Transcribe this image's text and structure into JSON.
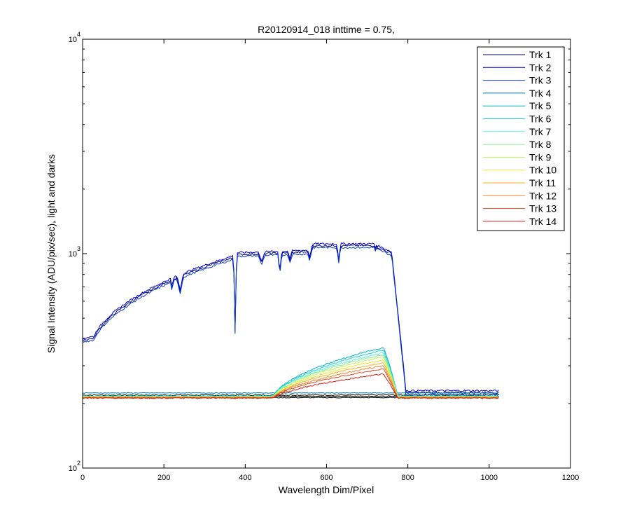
{
  "chart_data": {
    "type": "line",
    "title": "R20120914_018 inttime = 0.75,",
    "xlabel": "Wavelength Dim/Pixel",
    "ylabel": "Signal Intensity (ADU/pix/sec), light and darks",
    "xlim": [
      0,
      1200
    ],
    "ylim": [
      100,
      10000
    ],
    "yscale": "log",
    "x_ticks": [
      "0",
      "200",
      "400",
      "600",
      "800",
      "1000",
      "1200"
    ],
    "y_ticks": [
      {
        "base": "10",
        "exp": "2",
        "value": 100
      },
      {
        "base": "10",
        "exp": "3",
        "value": 1000
      },
      {
        "base": "10",
        "exp": "4",
        "value": 10000
      }
    ],
    "grid": false,
    "legend_position": "top-right",
    "series": [
      {
        "name": "Trk 1",
        "color": "#00008f",
        "shape": "bright",
        "peak": 1.0
      },
      {
        "name": "Trk 2",
        "color": "#0000cf",
        "shape": "bright",
        "peak": 1.02
      },
      {
        "name": "Trk 3",
        "color": "#0f3fbf",
        "shape": "bright",
        "peak": 0.98
      },
      {
        "name": "Trk 4",
        "color": "#0070a8",
        "shape": "flat",
        "base": 224
      },
      {
        "name": "Trk 5",
        "color": "#00b0c0",
        "shape": "hump",
        "base": 217,
        "peak": 365
      },
      {
        "name": "Trk 6",
        "color": "#20d0d0",
        "shape": "hump",
        "base": 216,
        "peak": 355
      },
      {
        "name": "Trk 7",
        "color": "#60f0e0",
        "shape": "hump",
        "base": 216,
        "peak": 345
      },
      {
        "name": "Trk 8",
        "color": "#90f090",
        "shape": "hump",
        "base": 215,
        "peak": 338
      },
      {
        "name": "Trk 9",
        "color": "#c0f060",
        "shape": "hump",
        "base": 215,
        "peak": 330
      },
      {
        "name": "Trk 10",
        "color": "#e8e830",
        "shape": "hump",
        "base": 214,
        "peak": 320
      },
      {
        "name": "Trk 11",
        "color": "#f0b020",
        "shape": "hump",
        "base": 214,
        "peak": 310
      },
      {
        "name": "Trk 12",
        "color": "#f08030",
        "shape": "hump",
        "base": 213,
        "peak": 300
      },
      {
        "name": "Trk 13",
        "color": "#e05020",
        "shape": "hump",
        "base": 213,
        "peak": 290
      },
      {
        "name": "Trk 14",
        "color": "#d02010",
        "shape": "hump",
        "base": 212,
        "peak": 275
      }
    ],
    "dark_levels": [
      219,
      216,
      213
    ]
  }
}
